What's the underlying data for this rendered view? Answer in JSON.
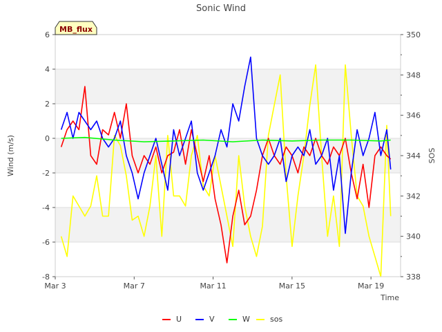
{
  "chart_data": {
    "type": "line",
    "title": "Sonic Wind",
    "xlabel": "Time",
    "ylabel": "Wind (m/s)",
    "y2label": "SOS",
    "x_unit": "days since Mar 3",
    "xlim": [
      0,
      17.5
    ],
    "ylim": [
      -8,
      6
    ],
    "y2lim": [
      338,
      350
    ],
    "x_ticks": [
      {
        "value": 0,
        "label": "Mar 3"
      },
      {
        "value": 4,
        "label": "Mar 7"
      },
      {
        "value": 8,
        "label": "Mar 11"
      },
      {
        "value": 12,
        "label": "Mar 15"
      },
      {
        "value": 16,
        "label": "Mar 19"
      }
    ],
    "y_ticks": [
      -8,
      -6,
      -4,
      -2,
      0,
      2,
      4,
      6
    ],
    "y2_ticks": [
      338,
      340,
      342,
      344,
      346,
      348,
      350
    ],
    "annotation": "MB_flux",
    "series": [
      {
        "name": "U",
        "axis": "left",
        "color": "#ff0000",
        "x": [
          0.3,
          0.6,
          0.9,
          1.2,
          1.5,
          1.8,
          2.1,
          2.4,
          2.7,
          3.0,
          3.3,
          3.6,
          3.9,
          4.2,
          4.5,
          4.8,
          5.1,
          5.4,
          5.7,
          6.0,
          6.3,
          6.6,
          6.9,
          7.2,
          7.5,
          7.8,
          8.1,
          8.4,
          8.7,
          9.0,
          9.3,
          9.6,
          9.9,
          10.2,
          10.5,
          10.8,
          11.1,
          11.4,
          11.7,
          12.0,
          12.3,
          12.6,
          12.9,
          13.2,
          13.5,
          13.8,
          14.1,
          14.4,
          14.7,
          15.0,
          15.3,
          15.6,
          15.9,
          16.2,
          16.5,
          16.8,
          17.0
        ],
        "values": [
          -0.5,
          0.5,
          1.0,
          0.5,
          3.0,
          -1.0,
          -1.5,
          0.5,
          0.2,
          1.5,
          0.0,
          2.0,
          -1.0,
          -2.0,
          -1.0,
          -1.5,
          -0.5,
          -2.0,
          -1.0,
          -0.8,
          0.5,
          -1.5,
          0.5,
          -1.0,
          -2.5,
          -1.0,
          -3.5,
          -5.0,
          -7.2,
          -4.5,
          -3.0,
          -5.0,
          -4.5,
          -3.0,
          -1.0,
          0.0,
          -1.0,
          -1.5,
          -0.5,
          -1.0,
          -2.0,
          -0.5,
          -1.0,
          0.0,
          -1.0,
          -1.5,
          -0.5,
          -1.0,
          0.0,
          -2.0,
          -3.5,
          -1.5,
          -4.0,
          -1.0,
          -0.5,
          -1.0,
          -1.2
        ]
      },
      {
        "name": "V",
        "axis": "left",
        "color": "#0000ff",
        "x": [
          0.3,
          0.6,
          0.9,
          1.2,
          1.5,
          1.8,
          2.1,
          2.4,
          2.7,
          3.0,
          3.3,
          3.6,
          3.9,
          4.2,
          4.5,
          4.8,
          5.1,
          5.4,
          5.7,
          6.0,
          6.3,
          6.6,
          6.9,
          7.2,
          7.5,
          7.8,
          8.1,
          8.4,
          8.7,
          9.0,
          9.3,
          9.6,
          9.9,
          10.2,
          10.5,
          10.8,
          11.1,
          11.4,
          11.7,
          12.0,
          12.3,
          12.6,
          12.9,
          13.2,
          13.5,
          13.8,
          14.1,
          14.4,
          14.7,
          15.0,
          15.3,
          15.6,
          15.9,
          16.2,
          16.5,
          16.8,
          17.0
        ],
        "values": [
          0.5,
          1.5,
          0.0,
          1.5,
          1.0,
          0.5,
          1.0,
          0.0,
          -0.5,
          0.0,
          1.0,
          -1.0,
          -2.0,
          -3.5,
          -2.0,
          -1.0,
          0.0,
          -1.5,
          -3.0,
          0.5,
          -1.0,
          0.0,
          1.0,
          -2.0,
          -3.0,
          -2.0,
          -1.0,
          0.5,
          -0.5,
          2.0,
          1.0,
          3.0,
          4.7,
          0.0,
          -1.0,
          -1.5,
          -1.0,
          0.0,
          -2.5,
          -1.0,
          -0.5,
          -1.0,
          0.5,
          -1.5,
          -1.0,
          0.0,
          -3.0,
          -1.0,
          -5.5,
          -2.0,
          0.5,
          -1.0,
          0.0,
          1.5,
          -1.0,
          0.5,
          -1.8
        ]
      },
      {
        "name": "W",
        "axis": "left",
        "color": "#00ff00",
        "x": [
          0.3,
          1.5,
          3.0,
          4.5,
          6.0,
          7.5,
          9.0,
          10.5,
          12.0,
          13.5,
          15.0,
          16.5,
          17.0
        ],
        "values": [
          0.0,
          0.05,
          -0.1,
          -0.2,
          -0.15,
          -0.1,
          -0.2,
          -0.1,
          -0.15,
          -0.1,
          -0.1,
          -0.15,
          -0.1
        ]
      },
      {
        "name": "sos",
        "axis": "right",
        "color": "#ffff00",
        "x": [
          0.3,
          0.6,
          0.9,
          1.2,
          1.5,
          1.8,
          2.1,
          2.4,
          2.7,
          3.0,
          3.3,
          3.6,
          3.9,
          4.2,
          4.5,
          4.8,
          5.1,
          5.4,
          5.7,
          6.0,
          6.3,
          6.6,
          6.9,
          7.2,
          7.5,
          7.8,
          8.1,
          8.4,
          8.7,
          9.0,
          9.3,
          9.6,
          9.9,
          10.2,
          10.5,
          10.8,
          11.1,
          11.4,
          11.7,
          12.0,
          12.3,
          12.6,
          12.9,
          13.2,
          13.5,
          13.8,
          14.1,
          14.4,
          14.7,
          15.0,
          15.3,
          15.6,
          15.9,
          16.2,
          16.5,
          16.8,
          17.0
        ],
        "values": [
          340,
          339,
          342,
          341.5,
          341,
          341.5,
          343,
          341,
          341,
          345,
          344.5,
          343,
          340.8,
          341,
          340,
          341.5,
          344,
          340,
          345,
          342,
          342,
          341.5,
          344,
          345,
          342.5,
          342,
          344,
          342.5,
          341,
          339.5,
          344,
          341.5,
          340,
          339,
          340.5,
          345,
          346.5,
          348,
          343,
          339.5,
          342,
          344,
          346.5,
          348.5,
          344,
          340,
          342,
          339.5,
          348.5,
          345,
          342,
          341.5,
          340,
          339,
          338,
          345.5,
          341
        ]
      }
    ]
  }
}
